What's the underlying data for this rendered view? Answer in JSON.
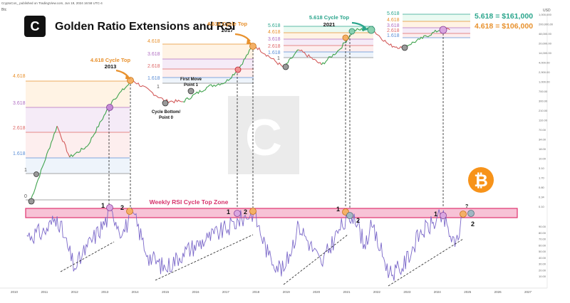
{
  "header": {
    "published_line": "CryptoCon_ published on TradingView.com, Jun 19, 2024 16:58 UTC-4",
    "pair_label": "Btc",
    "currency_label": "USD"
  },
  "logo_text": "C",
  "watermark_text": "C",
  "title": "Golden Ratio Extensions and RSI",
  "targets": {
    "t1": "5.618 = $161,000",
    "t2": "4.618 = $106,000"
  },
  "annotations": {
    "top2013_a": "4.618 Cycle Top",
    "top2013_b": "2013",
    "top2017_a": "4.618 Cycle Top",
    "top2017_b": "2017",
    "top2021_a": "5.618 Cycle Top",
    "top2021_b": "2021",
    "first_move_a": "First Move",
    "first_move_b": "Point 1",
    "bottom_a": "Cycle Bottom/",
    "bottom_b": "Point 0",
    "rsi_zone": "Weekly RSI Cycle Top Zone",
    "question": "?"
  },
  "rsi_markers": [
    {
      "label": "1"
    },
    {
      "label": "2"
    },
    {
      "label": "1"
    },
    {
      "label": "2"
    },
    {
      "label": "1"
    },
    {
      "label": "2"
    },
    {
      "label": "1"
    },
    {
      "label": "2"
    }
  ],
  "fib_labels": {
    "c2013": [
      "4.618",
      "3.618",
      "2.618",
      "1.618",
      "1",
      "0"
    ],
    "c2017": [
      "4.618",
      "3.618",
      "2.618",
      "1.618",
      "1"
    ],
    "c2021": [
      "5.618",
      "4.618",
      "3.618",
      "2.618",
      "1.618",
      "1"
    ],
    "c2025": [
      "5.618",
      "4.618",
      "3.618",
      "2.618",
      "1.618"
    ]
  },
  "colors": {
    "price_up": "#3fa34d",
    "price_down": "#d35c5c",
    "rsi": "#7b68c9",
    "zone_fill": "#f7c2d6",
    "zone_stroke": "#e0336e",
    "zone_text": "#d6336c",
    "orange": "#e8912d",
    "teal": "#2aa58c",
    "bitcoin": "#f7931a"
  },
  "chart_data": [
    {
      "type": "line",
      "title": "Golden Ratio Extensions and RSI",
      "series": [
        {
          "name": "",
          "x": [
            "2010-07",
            "2011-06",
            "2011-11",
            "2012-06",
            "2013-04",
            "2013-12",
            "2015-01",
            "2015-08",
            "2016-06",
            "2017-01",
            "2017-06",
            "2017-12",
            "2018-12",
            "2019-06",
            "2020-03",
            "2020-10",
            "2021-04",
            "2021-11",
            "2022-06",
            "2022-11",
            "2023-06",
            "2024-03",
            "2024-06"
          ],
          "values": [
            0.06,
            30,
            2.5,
            6,
            230,
            1150,
            220,
            210,
            700,
            1000,
            2800,
            19500,
            3200,
            13000,
            4000,
            13000,
            63000,
            68000,
            19000,
            15500,
            30000,
            72000,
            65000
          ]
        }
      ],
      "ylabel": "USD",
      "y_scale": "log",
      "y_ticks": [
        "1,000,000",
        "200,000,00",
        "48,000.00",
        "20,000.00",
        "14,000.00",
        "4,000.00",
        "2,900.00",
        "1,000.00",
        "700.00",
        "300.00",
        "210.00",
        "110.00",
        "70.00",
        "34.00",
        "18.00",
        "10.00",
        "3.10",
        "1.70",
        "0.80",
        "0.34",
        "0.10"
      ],
      "x_ticks": [
        "2010",
        "2011",
        "2012",
        "2013",
        "2014",
        "2015",
        "2016",
        "2017",
        "2018",
        "2019",
        "2020",
        "2021",
        "2022",
        "2023",
        "2024",
        "2025",
        "2026",
        "2027"
      ]
    },
    {
      "type": "line",
      "title": "",
      "series": [
        {
          "name": "",
          "x": [
            "2010-06",
            "2011-01",
            "2011-06",
            "2012-01",
            "2012-06",
            "2013-04",
            "2013-08",
            "2013-12",
            "2014-06",
            "2015-01",
            "2015-08",
            "2016-06",
            "2017-01",
            "2017-06",
            "2017-12",
            "2018-06",
            "2018-12",
            "2019-06",
            "2020-03",
            "2020-10",
            "2021-04",
            "2021-08",
            "2021-11",
            "2022-06",
            "2022-11",
            "2023-06",
            "2024-03",
            "2024-08",
            "2024-11"
          ],
          "values": [
            68,
            72,
            90,
            30,
            55,
            95,
            70,
            95,
            45,
            30,
            48,
            65,
            75,
            85,
            95,
            45,
            27,
            80,
            35,
            75,
            93,
            58,
            78,
            25,
            30,
            70,
            90,
            55,
            88
          ]
        }
      ],
      "ylabel": "",
      "ylim": [
        10,
        100
      ],
      "y_ticks": [
        "90.00",
        "80.00",
        "70.00",
        "60.00",
        "50.00",
        "40.00",
        "30.00",
        "20.00",
        "10.00"
      ]
    }
  ]
}
